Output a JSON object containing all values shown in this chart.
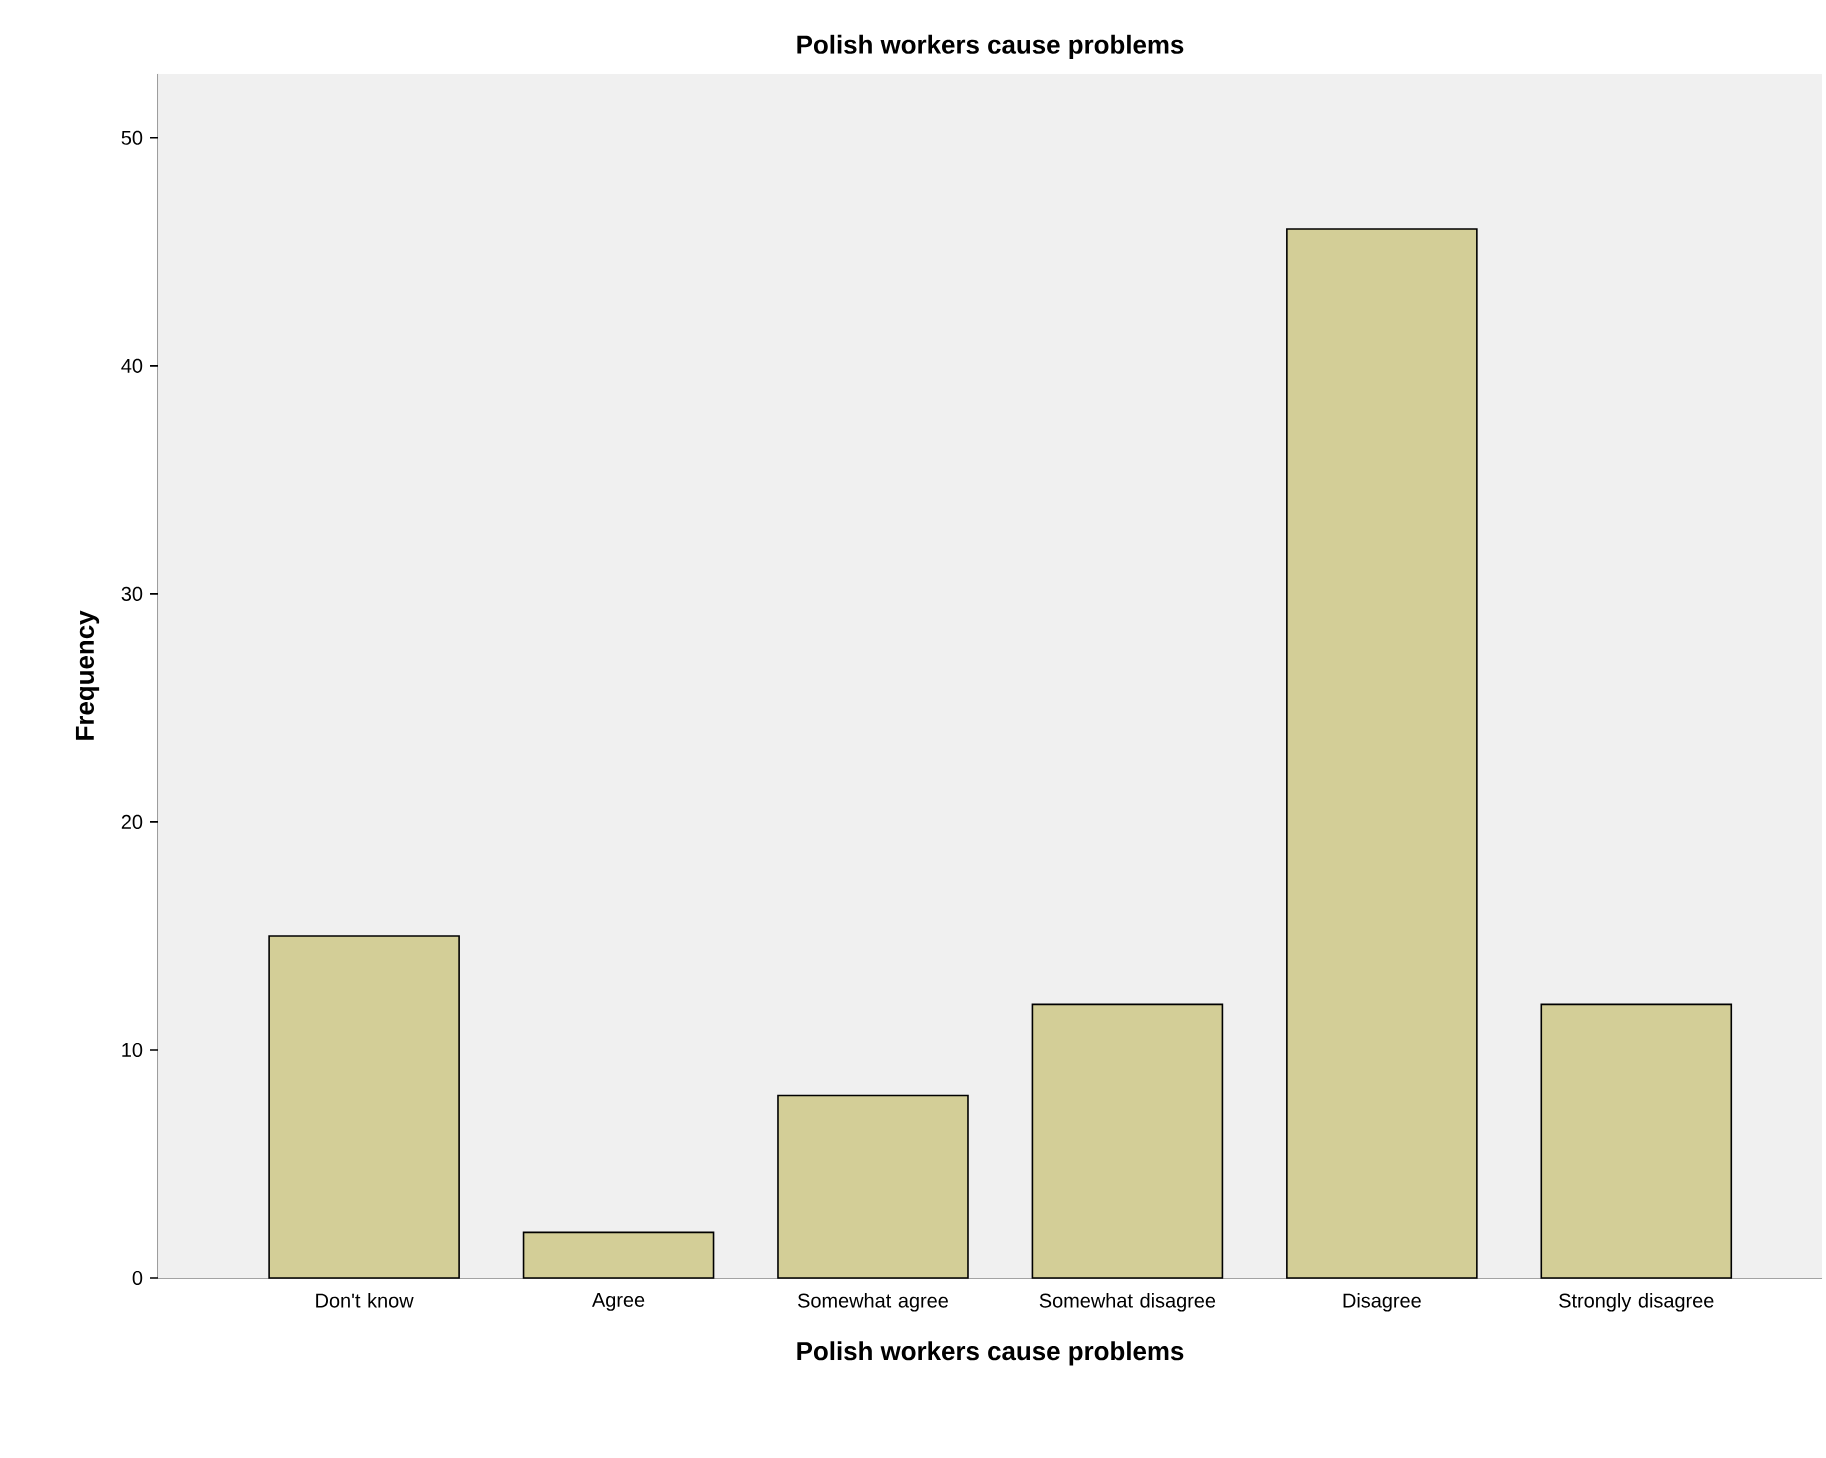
{
  "chart_data": {
    "type": "bar",
    "title": "Polish workers cause problems",
    "xlabel": "Polish workers cause problems",
    "ylabel": "Frequency",
    "categories": [
      "Don't know",
      "Agree",
      "Somewhat agree",
      "Somewhat disagree",
      "Disagree",
      "Strongly disagree"
    ],
    "values": [
      15,
      2,
      8,
      12,
      46,
      12
    ],
    "color": "#d3ce97",
    "ylim": [
      0,
      52.8
    ],
    "yticks": [
      0,
      10,
      20,
      30,
      40,
      50
    ]
  }
}
